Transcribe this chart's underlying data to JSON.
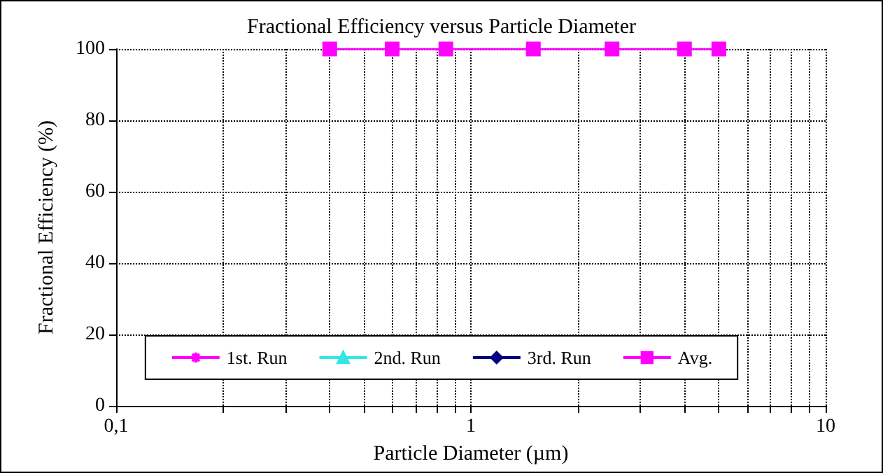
{
  "chart_data": {
    "type": "line",
    "title": "Fractional Efficiency versus Particle Diameter",
    "xlabel": "Particle Diameter (µm)",
    "ylabel": "Fractional Efficiency (%)",
    "log": "x",
    "xlim": [
      0.1,
      10
    ],
    "xticks": [
      {
        "value": 0.1,
        "label": "0,1"
      },
      {
        "value": 0.2,
        "label": null
      },
      {
        "value": 0.3,
        "label": null
      },
      {
        "value": 0.4,
        "label": null
      },
      {
        "value": 0.5,
        "label": null
      },
      {
        "value": 0.6,
        "label": null
      },
      {
        "value": 0.7,
        "label": null
      },
      {
        "value": 0.8,
        "label": null
      },
      {
        "value": 0.9,
        "label": null
      },
      1,
      {
        "value": 2,
        "label": null
      },
      {
        "value": 3,
        "label": null
      },
      {
        "value": 4,
        "label": null
      },
      {
        "value": 5,
        "label": null
      },
      {
        "value": 6,
        "label": null
      },
      {
        "value": 7,
        "label": null
      },
      {
        "value": 8,
        "label": null
      },
      {
        "value": 9,
        "label": null
      },
      10
    ],
    "ylim": [
      0,
      100
    ],
    "yticks": [
      0,
      20,
      40,
      60,
      80,
      100
    ],
    "grid": true,
    "legend": "bottom",
    "line_style": "solid",
    "x": [
      0.4,
      0.6,
      0.85,
      1.5,
      2.5,
      4,
      5
    ],
    "series": [
      {
        "name": "1st. Run",
        "color": "#ff00ff",
        "marker": "star",
        "values": [
          null,
          null,
          null,
          null,
          null,
          null,
          null
        ]
      },
      {
        "name": "2nd. Run",
        "color": "#33e6e6",
        "marker": "triangle",
        "values": [
          null,
          null,
          null,
          null,
          null,
          null,
          null
        ]
      },
      {
        "name": "3rd. Run",
        "color": "#000080",
        "marker": "diamond",
        "values": [
          null,
          null,
          null,
          null,
          null,
          null,
          null
        ]
      },
      {
        "name": "Avg.",
        "color": "#ff00ff",
        "marker": "square",
        "values": [
          100,
          100,
          100,
          100,
          100,
          100,
          100
        ]
      }
    ]
  }
}
